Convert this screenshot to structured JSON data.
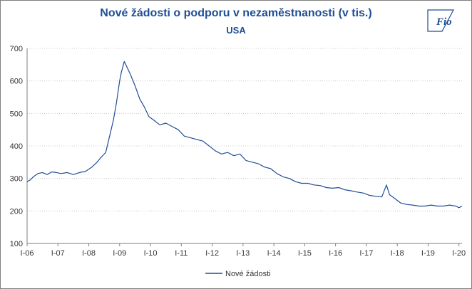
{
  "header": {
    "title": "Nové žádosti o podporu v nezaměstnanosti (v tis.)",
    "subtitle": "USA"
  },
  "logo": {
    "text": "Fio",
    "caption": "Fio banka",
    "color": "#1f4e96"
  },
  "chart_data": {
    "type": "line",
    "title": "Nové žádosti o podporu v nezaměstnanosti (v tis.)",
    "subtitle": "USA",
    "xlabel": "",
    "ylabel": "",
    "ylim": [
      100,
      700
    ],
    "yticks": [
      100,
      200,
      300,
      400,
      500,
      600,
      700
    ],
    "xticks": [
      "I-06",
      "I-07",
      "I-08",
      "I-09",
      "I-10",
      "I-11",
      "I-12",
      "I-13",
      "I-14",
      "I-15",
      "I-16",
      "I-17",
      "I-18",
      "I-19",
      "I-20"
    ],
    "xrange": [
      2006.0,
      2020.1
    ],
    "grid": "horizontal",
    "legend": "bottom",
    "series": [
      {
        "name": "Nové žádosti",
        "color": "#1f4e96",
        "points": [
          [
            2006.0,
            290
          ],
          [
            2006.1,
            295
          ],
          [
            2006.2,
            305
          ],
          [
            2006.35,
            315
          ],
          [
            2006.5,
            318
          ],
          [
            2006.65,
            312
          ],
          [
            2006.8,
            320
          ],
          [
            2006.95,
            318
          ],
          [
            2007.1,
            315
          ],
          [
            2007.3,
            318
          ],
          [
            2007.5,
            312
          ],
          [
            2007.7,
            318
          ],
          [
            2007.9,
            322
          ],
          [
            2008.1,
            335
          ],
          [
            2008.25,
            348
          ],
          [
            2008.4,
            365
          ],
          [
            2008.55,
            380
          ],
          [
            2008.7,
            440
          ],
          [
            2008.8,
            480
          ],
          [
            2008.9,
            535
          ],
          [
            2009.0,
            600
          ],
          [
            2009.05,
            625
          ],
          [
            2009.15,
            660
          ],
          [
            2009.25,
            640
          ],
          [
            2009.35,
            620
          ],
          [
            2009.5,
            585
          ],
          [
            2009.65,
            545
          ],
          [
            2009.8,
            520
          ],
          [
            2009.95,
            490
          ],
          [
            2010.1,
            480
          ],
          [
            2010.3,
            465
          ],
          [
            2010.5,
            470
          ],
          [
            2010.7,
            460
          ],
          [
            2010.9,
            450
          ],
          [
            2011.1,
            430
          ],
          [
            2011.3,
            425
          ],
          [
            2011.5,
            420
          ],
          [
            2011.7,
            415
          ],
          [
            2011.9,
            400
          ],
          [
            2012.1,
            385
          ],
          [
            2012.3,
            375
          ],
          [
            2012.5,
            380
          ],
          [
            2012.7,
            370
          ],
          [
            2012.9,
            375
          ],
          [
            2013.1,
            355
          ],
          [
            2013.3,
            350
          ],
          [
            2013.5,
            345
          ],
          [
            2013.7,
            335
          ],
          [
            2013.9,
            330
          ],
          [
            2014.1,
            315
          ],
          [
            2014.3,
            305
          ],
          [
            2014.5,
            300
          ],
          [
            2014.7,
            290
          ],
          [
            2014.9,
            285
          ],
          [
            2015.1,
            285
          ],
          [
            2015.3,
            280
          ],
          [
            2015.5,
            278
          ],
          [
            2015.7,
            272
          ],
          [
            2015.9,
            270
          ],
          [
            2016.1,
            272
          ],
          [
            2016.3,
            265
          ],
          [
            2016.5,
            262
          ],
          [
            2016.7,
            258
          ],
          [
            2016.9,
            255
          ],
          [
            2017.1,
            248
          ],
          [
            2017.3,
            245
          ],
          [
            2017.5,
            243
          ],
          [
            2017.65,
            280
          ],
          [
            2017.75,
            250
          ],
          [
            2017.9,
            240
          ],
          [
            2018.1,
            225
          ],
          [
            2018.3,
            220
          ],
          [
            2018.5,
            218
          ],
          [
            2018.7,
            215
          ],
          [
            2018.9,
            215
          ],
          [
            2019.1,
            218
          ],
          [
            2019.3,
            215
          ],
          [
            2019.5,
            215
          ],
          [
            2019.7,
            218
          ],
          [
            2019.9,
            215
          ],
          [
            2020.0,
            210
          ],
          [
            2020.1,
            215
          ]
        ]
      }
    ]
  }
}
